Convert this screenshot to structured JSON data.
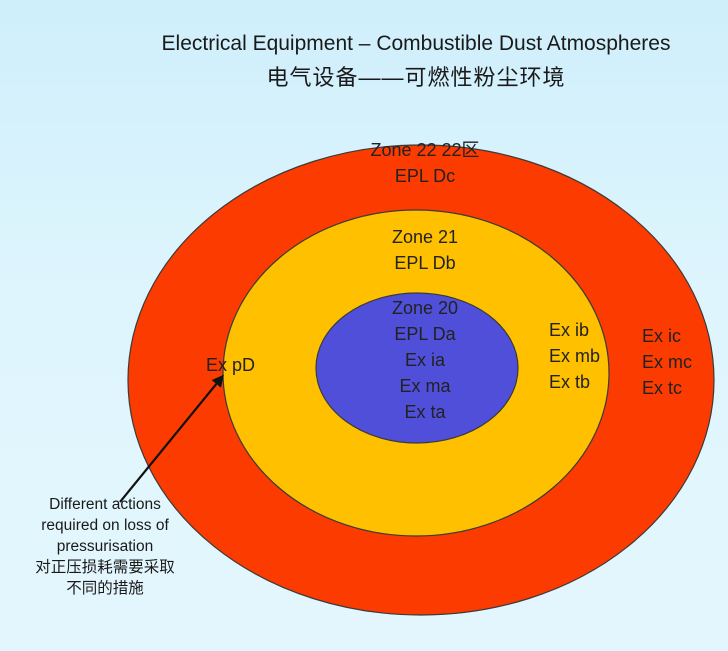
{
  "title": {
    "en": "Electrical Equipment – Combustible Dust Atmospheres",
    "zh": "电气设备——可燃性粉尘环境"
  },
  "colors": {
    "zone22": "#fb3b00",
    "zone21": "#ffc000",
    "zone20": "#4f4fd9",
    "outline": "#3a3a3a",
    "arrow": "#111111"
  },
  "zones": {
    "zone22": {
      "name": "Zone 22 22区",
      "epl": "EPL Dc",
      "protection": [
        "Ex ic",
        "Ex mc",
        "Ex tc"
      ]
    },
    "zone21": {
      "name": "Zone 21",
      "epl": "EPL Db",
      "protection": [
        "Ex ib",
        "Ex mb",
        "Ex tb"
      ]
    },
    "zone20": {
      "name": "Zone 20",
      "epl": "EPL Da",
      "protection": [
        "Ex ia",
        "Ex ma",
        "Ex ta"
      ]
    }
  },
  "pressurisation": {
    "label": "Ex pD",
    "note_en": [
      "Different actions",
      "required on loss of",
      "pressurisation"
    ],
    "note_zh": [
      "对正压损耗需要采取",
      "不同的措施"
    ]
  }
}
